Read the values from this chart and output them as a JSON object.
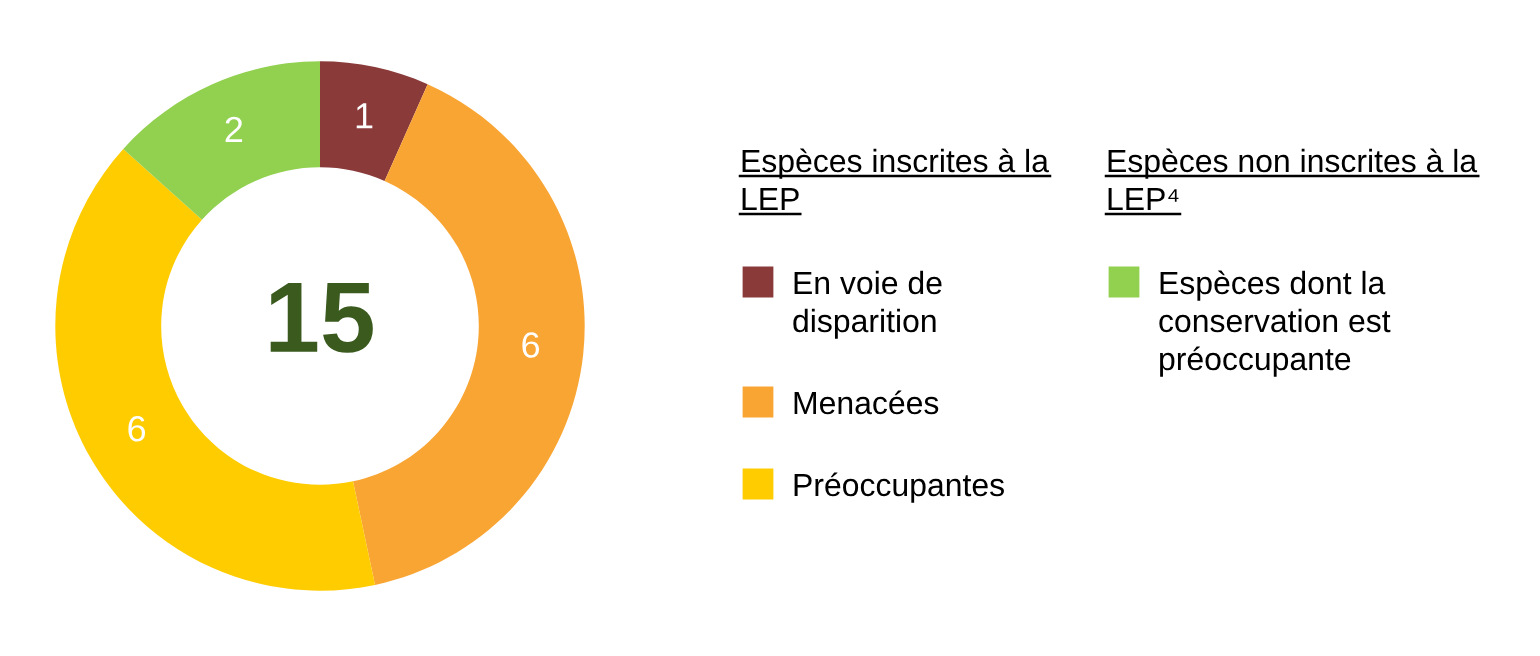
{
  "chart_data": {
    "type": "donut",
    "categories": [
      "En voie de disparition",
      "Menacées",
      "Préoccupantes",
      "Espèces dont la conservation est préoccupante"
    ],
    "values": [
      1,
      6,
      6,
      2
    ],
    "colors": [
      "#8b3a3a",
      "#f9a533",
      "#ffcc00",
      "#92d050"
    ],
    "data_labels": true,
    "legend": "right",
    "annotations": [
      "15",
      "Espèces inscrites à la LEP",
      "Espèces non inscrites à la LEP⁴"
    ]
  }
}
